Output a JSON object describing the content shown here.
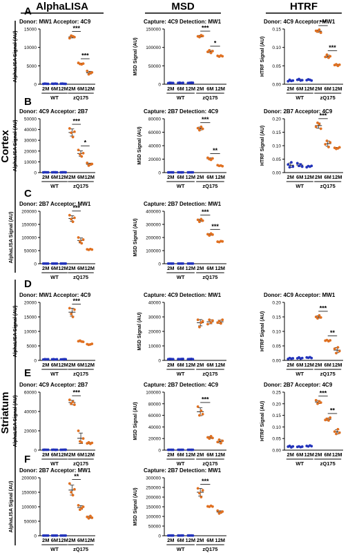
{
  "header": {
    "col1": "AlphaLISA",
    "col2": "MSD",
    "col3": "HTRF"
  },
  "regions": {
    "cortex": "Cortex",
    "striatum": "Striatum"
  },
  "colors": {
    "wt": "#2233bb",
    "zq175": "#e07020"
  },
  "chart_data": [
    {
      "id": "A1",
      "type": "scatter",
      "panel": "A",
      "title": "Donor: MW1 Acceptor: 4C9",
      "ylabel": "AlphaLISA Signal (AU)",
      "ylim": [
        0,
        15000
      ],
      "yticks": [
        0,
        5000,
        10000,
        15000
      ],
      "categories": [
        "2M",
        "6M",
        "12M",
        "2M",
        "6M",
        "12M"
      ],
      "groups": [
        "WT",
        "zQ175"
      ],
      "points": [
        [
          100,
          150,
          120,
          90
        ],
        [
          140,
          110,
          160,
          120
        ],
        [
          130,
          150,
          110,
          100
        ],
        [
          12500,
          13200,
          13000,
          12800
        ],
        [
          5800,
          5500,
          5400,
          5600
        ],
        [
          3600,
          2700,
          3000,
          3200
        ]
      ],
      "significance": [
        {
          "from": 3,
          "to": 4,
          "label": "***"
        },
        {
          "from": 4,
          "to": 5,
          "label": "***"
        }
      ]
    },
    {
      "id": "A2",
      "type": "scatter",
      "panel": "A",
      "title": "Capture: 4C9 Detection: MW1",
      "ylabel": "MSD Signal (AU)",
      "ylim": [
        0,
        150000
      ],
      "yticks": [
        0,
        50000,
        100000,
        150000
      ],
      "categories": [
        "2M",
        "6M",
        "12M",
        "2M",
        "6M",
        "12M"
      ],
      "groups": [
        "WT",
        "zQ175"
      ],
      "points": [
        [
          3000,
          4000,
          3500,
          3200
        ],
        [
          3500,
          4200,
          3000,
          3800
        ],
        [
          3200,
          3600,
          4100,
          3900
        ],
        [
          130000,
          128000,
          133000,
          131000
        ],
        [
          88000,
          92000,
          85000,
          90000
        ],
        [
          77000,
          75000,
          78000,
          76000
        ]
      ],
      "significance": [
        {
          "from": 3,
          "to": 4,
          "label": "***"
        },
        {
          "from": 4,
          "to": 5,
          "label": "*"
        }
      ]
    },
    {
      "id": "A3",
      "type": "scatter",
      "panel": "A",
      "title": "Donor: 4C9 Acceptor: MW1",
      "ylabel": "HTRF Signal (AU)",
      "ylim": [
        0,
        0.15
      ],
      "yticks": [
        0.0,
        0.05,
        0.1,
        0.15
      ],
      "categories": [
        "2M",
        "6M",
        "12M",
        "2M",
        "6M",
        "12M"
      ],
      "groups": [
        "WT",
        "zQ175"
      ],
      "points": [
        [
          0.008,
          0.012,
          0.009,
          0.01
        ],
        [
          0.012,
          0.014,
          0.01,
          0.011
        ],
        [
          0.011,
          0.013,
          0.012,
          0.01
        ],
        [
          0.145,
          0.143,
          0.148,
          0.14
        ],
        [
          0.074,
          0.08,
          0.072,
          0.076
        ],
        [
          0.052,
          0.054,
          0.05,
          0.053
        ]
      ],
      "significance": [
        {
          "from": 3,
          "to": 4,
          "label": "***"
        },
        {
          "from": 4,
          "to": 5,
          "label": "***"
        }
      ]
    },
    {
      "id": "B1",
      "type": "scatter",
      "panel": "B",
      "title": "Donor: 4C9 Acceptor: 2B7",
      "ylabel": "AlphaLISA Signal (AU)",
      "ylim": [
        0,
        50000
      ],
      "yticks": [
        0,
        10000,
        20000,
        30000,
        40000,
        50000
      ],
      "categories": [
        "2M",
        "6M",
        "12M",
        "2M",
        "6M",
        "12M"
      ],
      "groups": [
        "WT",
        "zQ175"
      ],
      "points": [
        [
          200,
          300,
          250,
          220
        ],
        [
          260,
          300,
          280,
          240
        ],
        [
          250,
          270,
          300,
          230
        ],
        [
          41000,
          37000,
          33000,
          38000
        ],
        [
          21000,
          17000,
          15000,
          18000
        ],
        [
          9000,
          6500,
          7500,
          8000
        ]
      ],
      "significance": [
        {
          "from": 3,
          "to": 4,
          "label": "***"
        },
        {
          "from": 4,
          "to": 5,
          "label": "*"
        }
      ]
    },
    {
      "id": "B2",
      "type": "scatter",
      "panel": "B",
      "title": "Capture: 2B7 Detection: 4C9",
      "ylabel": "MSD Signal (AU)",
      "ylim": [
        0,
        80000
      ],
      "yticks": [
        0,
        20000,
        40000,
        60000,
        80000
      ],
      "categories": [
        "2M",
        "6M",
        "12M",
        "2M",
        "6M",
        "12M"
      ],
      "groups": [
        "WT",
        "zQ175"
      ],
      "points": [
        [
          300,
          400,
          350,
          320
        ],
        [
          350,
          420,
          300,
          380
        ],
        [
          320,
          360,
          410,
          390
        ],
        [
          66000,
          63000,
          68000,
          65000
        ],
        [
          22000,
          20000,
          19000,
          21000
        ],
        [
          11000,
          10000,
          10500,
          9500
        ]
      ],
      "significance": [
        {
          "from": 3,
          "to": 4,
          "label": "***"
        },
        {
          "from": 4,
          "to": 5,
          "label": "**"
        }
      ]
    },
    {
      "id": "B3",
      "type": "scatter",
      "panel": "B",
      "title": "Donor: 2B7 Acceptor: 4C9",
      "ylabel": "HTRF Signal (AU)",
      "ylim": [
        0,
        0.2
      ],
      "yticks": [
        0.0,
        0.05,
        0.1,
        0.15,
        0.2
      ],
      "categories": [
        "2M",
        "6M",
        "12M",
        "2M",
        "6M",
        "12M"
      ],
      "groups": [
        "WT",
        "zQ175"
      ],
      "points": [
        [
          0.03,
          0.02,
          0.038,
          0.022
        ],
        [
          0.035,
          0.025,
          0.03,
          0.022
        ],
        [
          0.02,
          0.024,
          0.022,
          0.025
        ],
        [
          0.17,
          0.185,
          0.18,
          0.163
        ],
        [
          0.105,
          0.118,
          0.095,
          0.112
        ],
        [
          0.092,
          0.088,
          0.09,
          0.094
        ]
      ],
      "significance": [
        {
          "from": 3,
          "to": 4,
          "label": "***"
        }
      ]
    },
    {
      "id": "C1",
      "type": "scatter",
      "panel": "C",
      "title": "Donor: 2B7 Acceptor: MW1",
      "ylabel": "AlphaLISA Signal (AU)",
      "ylim": [
        0,
        200000
      ],
      "yticks": [
        0,
        50000,
        100000,
        150000,
        200000
      ],
      "categories": [
        "2M",
        "6M",
        "12M",
        "2M",
        "6M",
        "12M"
      ],
      "groups": [
        "WT",
        "zQ175"
      ],
      "points": [
        [
          500,
          600,
          550,
          520
        ],
        [
          600,
          520,
          580,
          560
        ],
        [
          550,
          600,
          520,
          540
        ],
        [
          185000,
          170000,
          160000,
          175000
        ],
        [
          100000,
          85000,
          78000,
          92000
        ],
        [
          55000,
          53000,
          56000,
          54000
        ]
      ],
      "significance": [
        {
          "from": 3,
          "to": 4,
          "label": "***"
        }
      ]
    },
    {
      "id": "C2",
      "type": "scatter",
      "panel": "C",
      "title": "Capture: 2B7 Detection: MW1",
      "ylabel": "MSD Signal (AU)",
      "ylim": [
        0,
        400000
      ],
      "yticks": [
        0,
        100000,
        200000,
        300000,
        400000
      ],
      "categories": [
        "2M",
        "6M",
        "12M",
        "2M",
        "6M",
        "12M"
      ],
      "groups": [
        "WT",
        "zQ175"
      ],
      "points": [
        [
          1000,
          1200,
          1100,
          1050
        ],
        [
          1100,
          1000,
          1150,
          1200
        ],
        [
          1050,
          1100,
          1200,
          1000
        ],
        [
          335000,
          320000,
          340000,
          328000
        ],
        [
          225000,
          215000,
          230000,
          222000
        ],
        [
          168000,
          165000,
          172000,
          170000
        ]
      ],
      "significance": [
        {
          "from": 3,
          "to": 4,
          "label": "***"
        },
        {
          "from": 4,
          "to": 5,
          "label": "***"
        }
      ]
    },
    {
      "id": "D1",
      "type": "scatter",
      "panel": "D",
      "title": "Donor: MW1 Acceptor: 4C9",
      "ylabel": "AlphaLISA Signal (AU)",
      "ylim": [
        0,
        20000
      ],
      "yticks": [
        0,
        5000,
        10000,
        15000,
        20000
      ],
      "categories": [
        "2M",
        "6M",
        "12M",
        "2M",
        "6M",
        "12M"
      ],
      "groups": [
        "WT",
        "zQ175"
      ],
      "points": [
        [
          300,
          400,
          350,
          380
        ],
        [
          350,
          420,
          300,
          380
        ],
        [
          320,
          360,
          410,
          390
        ],
        [
          18000,
          16000,
          15000,
          17500
        ],
        [
          6600,
          6800,
          6500,
          6400
        ],
        [
          5600,
          5400,
          5500,
          5700
        ]
      ],
      "significance": [
        {
          "from": 3,
          "to": 4,
          "label": "***"
        }
      ]
    },
    {
      "id": "D2",
      "type": "scatter",
      "panel": "D",
      "title": "Capture: 4C9 Detection: MW1",
      "ylabel": "MSD Signal (AU)",
      "ylim": [
        0,
        40000
      ],
      "yticks": [
        0,
        10000,
        20000,
        30000,
        40000
      ],
      "categories": [
        "2M",
        "6M",
        "12M",
        "2M",
        "6M",
        "12M"
      ],
      "groups": [
        "WT",
        "zQ175"
      ],
      "points": [
        [
          800,
          1000,
          900,
          850
        ],
        [
          900,
          800,
          950,
          1000
        ],
        [
          850,
          900,
          1000,
          800
        ],
        [
          28000,
          23000,
          26000,
          27000
        ],
        [
          25000,
          28000,
          26000,
          27500
        ],
        [
          26000,
          27000,
          25500,
          28000
        ]
      ],
      "significance": []
    },
    {
      "id": "D3",
      "type": "scatter",
      "panel": "D",
      "title": "Donor: 4C9 Acceptor: MW1",
      "ylabel": "HTRF Signal (AU)",
      "ylim": [
        0,
        0.2
      ],
      "yticks": [
        0.0,
        0.05,
        0.1,
        0.15,
        0.2
      ],
      "categories": [
        "2M",
        "6M",
        "12M",
        "2M",
        "6M",
        "12M"
      ],
      "groups": [
        "WT",
        "zQ175"
      ],
      "points": [
        [
          0.005,
          0.008,
          0.006,
          0.007
        ],
        [
          0.007,
          0.01,
          0.006,
          0.008
        ],
        [
          0.01,
          0.009,
          0.011,
          0.008
        ],
        [
          0.15,
          0.145,
          0.155,
          0.148
        ],
        [
          0.068,
          0.07,
          0.066,
          0.069
        ],
        [
          0.04,
          0.025,
          0.045,
          0.032
        ]
      ],
      "significance": [
        {
          "from": 3,
          "to": 4,
          "label": "***"
        },
        {
          "from": 4,
          "to": 5,
          "label": "**"
        }
      ]
    },
    {
      "id": "E1",
      "type": "scatter",
      "panel": "E",
      "title": "Donor: 4C9 Acceptor: 2B7",
      "ylabel": "AlphaLISA Signal (AU)",
      "ylim": [
        0,
        60000
      ],
      "yticks": [
        0,
        20000,
        40000,
        60000
      ],
      "categories": [
        "2M",
        "6M",
        "12M",
        "2M",
        "6M",
        "12M"
      ],
      "groups": [
        "WT",
        "zQ175"
      ],
      "points": [
        [
          300,
          400,
          350,
          380
        ],
        [
          350,
          420,
          300,
          380
        ],
        [
          320,
          360,
          410,
          390
        ],
        [
          52000,
          48000,
          50000,
          47000
        ],
        [
          20000,
          9000,
          8000,
          12000
        ],
        [
          7000,
          8000,
          6500,
          7500
        ]
      ],
      "significance": [
        {
          "from": 3,
          "to": 4,
          "label": "***"
        }
      ]
    },
    {
      "id": "E2",
      "type": "scatter",
      "panel": "E",
      "title": "Capture: 2B7 Detection: 4C9",
      "ylabel": "MSD Signal (AU)",
      "ylim": [
        0,
        100000
      ],
      "yticks": [
        0,
        20000,
        40000,
        60000,
        80000,
        100000
      ],
      "categories": [
        "2M",
        "6M",
        "12M",
        "2M",
        "6M",
        "12M"
      ],
      "groups": [
        "WT",
        "zQ175"
      ],
      "points": [
        [
          500,
          600,
          550,
          520
        ],
        [
          600,
          520,
          580,
          560
        ],
        [
          550,
          600,
          520,
          540
        ],
        [
          75000,
          60000,
          68000,
          62000
        ],
        [
          22000,
          20000,
          24000,
          21000
        ],
        [
          14000,
          18000,
          12000,
          16000
        ]
      ],
      "significance": [
        {
          "from": 3,
          "to": 4,
          "label": "***"
        }
      ]
    },
    {
      "id": "E3",
      "type": "scatter",
      "panel": "E",
      "title": "Donor: 2B7 Acceptor: 4C9",
      "ylabel": "HTRF Signal (AU)",
      "ylim": [
        0,
        0.25
      ],
      "yticks": [
        0.0,
        0.05,
        0.1,
        0.15,
        0.2,
        0.25
      ],
      "categories": [
        "2M",
        "6M",
        "12M",
        "2M",
        "6M",
        "12M"
      ],
      "groups": [
        "WT",
        "zQ175"
      ],
      "points": [
        [
          0.015,
          0.018,
          0.012,
          0.016
        ],
        [
          0.014,
          0.016,
          0.013,
          0.015
        ],
        [
          0.018,
          0.016,
          0.02,
          0.017
        ],
        [
          0.215,
          0.2,
          0.21,
          0.205
        ],
        [
          0.13,
          0.135,
          0.128,
          0.14
        ],
        [
          0.08,
          0.07,
          0.09,
          0.075
        ]
      ],
      "significance": [
        {
          "from": 3,
          "to": 4,
          "label": "***"
        },
        {
          "from": 4,
          "to": 5,
          "label": "**"
        }
      ]
    },
    {
      "id": "F1",
      "type": "scatter",
      "panel": "F",
      "title": "Donor: 2B7 Acceptor: MW1",
      "ylabel": "AlphaLISA Signal (AU)",
      "ylim": [
        0,
        200000
      ],
      "yticks": [
        0,
        50000,
        100000,
        150000,
        200000
      ],
      "categories": [
        "2M",
        "6M",
        "12M",
        "2M",
        "6M",
        "12M"
      ],
      "groups": [
        "WT",
        "zQ175"
      ],
      "points": [
        [
          500,
          600,
          550,
          520
        ],
        [
          600,
          520,
          580,
          560
        ],
        [
          550,
          600,
          520,
          540
        ],
        [
          180000,
          150000,
          140000,
          160000
        ],
        [
          105000,
          90000,
          95000,
          100000
        ],
        [
          65000,
          60000,
          68000,
          62000
        ]
      ],
      "significance": [
        {
          "from": 3,
          "to": 4,
          "label": "**"
        }
      ]
    },
    {
      "id": "F2",
      "type": "scatter",
      "panel": "F",
      "title": "Capture: 2B7 Detection: MW1",
      "ylabel": "MSD Signal (AU)",
      "ylim": [
        0,
        300000
      ],
      "yticks": [
        0,
        50000,
        100000,
        150000,
        200000,
        250000,
        300000
      ],
      "categories": [
        "2M",
        "6M",
        "12M",
        "2M",
        "6M",
        "12M"
      ],
      "groups": [
        "WT",
        "zQ175"
      ],
      "points": [
        [
          1000,
          1200,
          1100,
          1050
        ],
        [
          1100,
          1000,
          1150,
          1200
        ],
        [
          1050,
          1100,
          1200,
          1000
        ],
        [
          245000,
          220000,
          200000,
          235000
        ],
        [
          152000,
          150000,
          155000,
          151000
        ],
        [
          130000,
          115000,
          120000,
          125000
        ]
      ],
      "significance": [
        {
          "from": 3,
          "to": 4,
          "label": "***"
        }
      ]
    }
  ]
}
